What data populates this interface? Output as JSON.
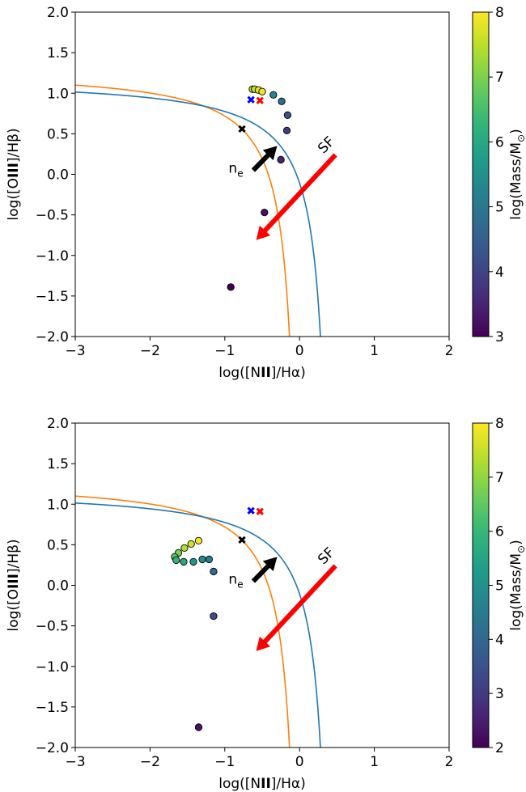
{
  "chart_data": [
    {
      "type": "scatter",
      "xlabel_parts": [
        "log([N",
        "II",
        "]/Hα)"
      ],
      "ylabel_parts": [
        "log([O",
        "III",
        "]/Hβ)"
      ],
      "xlim": [
        -3,
        2
      ],
      "ylim": [
        -2,
        2
      ],
      "x_ticks": [
        -3,
        -2,
        -1,
        0,
        1,
        2
      ],
      "x_tick_labels": [
        "−3",
        "−2",
        "−1",
        "0",
        "1",
        "2"
      ],
      "y_ticks": [
        2.0,
        1.5,
        1.0,
        0.5,
        0.0,
        -0.5,
        -1.0,
        -1.5,
        -2.0
      ],
      "y_tick_labels": [
        "2.0",
        "1.5",
        "1.0",
        "0.5",
        "0.0",
        "−0.5",
        "−1.0",
        "−1.5",
        "−2.0"
      ],
      "colorbar": {
        "label_parts": [
          "log(Mass/M",
          "⊙",
          ")"
        ],
        "colormap": "viridis_r",
        "range": [
          3,
          8
        ],
        "ticks": [
          3,
          4,
          5,
          6,
          7,
          8
        ],
        "tick_labels": [
          "3",
          "4",
          "5",
          "6",
          "7",
          "8"
        ]
      },
      "curves": [
        {
          "formula": "kauffmann",
          "color": "#ff7f0e"
        },
        {
          "formula": "kewley",
          "color": "#1f77b4"
        }
      ],
      "points": [
        {
          "x": -0.63,
          "y": 1.05,
          "mass": 7.5
        },
        {
          "x": -0.6,
          "y": 1.05,
          "mass": 7.6
        },
        {
          "x": -0.55,
          "y": 1.04,
          "mass": 7.8
        },
        {
          "x": -0.5,
          "y": 1.02,
          "mass": 7.9
        },
        {
          "x": -0.35,
          "y": 0.98,
          "mass": 5.3
        },
        {
          "x": -0.24,
          "y": 0.9,
          "mass": 4.8
        },
        {
          "x": -0.16,
          "y": 0.73,
          "mass": 4.3
        },
        {
          "x": -0.17,
          "y": 0.54,
          "mass": 3.9
        },
        {
          "x": -0.25,
          "y": 0.18,
          "mass": 3.5
        },
        {
          "x": -0.47,
          "y": -0.47,
          "mass": 3.2
        },
        {
          "x": -0.92,
          "y": -1.39,
          "mass": 3.0
        }
      ],
      "markers": [
        {
          "x": -0.65,
          "y": 0.92,
          "color": "#0000ff"
        },
        {
          "x": -0.53,
          "y": 0.91,
          "color": "#ff0000"
        },
        {
          "x": -0.77,
          "y": 0.56,
          "color": "#000000"
        }
      ],
      "arrows": [
        {
          "x1": -0.62,
          "y1": 0.05,
          "x2": -0.3,
          "y2": 0.35,
          "color": "#000000",
          "label": "n",
          "label_sub": "e",
          "label_x": -0.95,
          "label_y": 0.02,
          "label_rotation": 0
        },
        {
          "x1": 0.48,
          "y1": 0.24,
          "x2": -0.58,
          "y2": -0.81,
          "color": "#ff0000",
          "label": "SF",
          "label_x": 0.32,
          "label_y": 0.25,
          "label_rotation": -45
        }
      ]
    },
    {
      "type": "scatter",
      "xlabel_parts": [
        "log([N",
        "II",
        "]/Hα)"
      ],
      "ylabel_parts": [
        "log([O",
        "III",
        "]/Hβ)"
      ],
      "xlim": [
        -3,
        2
      ],
      "ylim": [
        -2,
        2
      ],
      "x_ticks": [
        -3,
        -2,
        -1,
        0,
        1,
        2
      ],
      "x_tick_labels": [
        "−3",
        "−2",
        "−1",
        "0",
        "1",
        "2"
      ],
      "y_ticks": [
        2.0,
        1.5,
        1.0,
        0.5,
        0.0,
        -0.5,
        -1.0,
        -1.5,
        -2.0
      ],
      "y_tick_labels": [
        "2.0",
        "1.5",
        "1.0",
        "0.5",
        "0.0",
        "−0.5",
        "−1.0",
        "−1.5",
        "−2.0"
      ],
      "colorbar": {
        "label_parts": [
          "log(Mass/M",
          "⊙",
          ")"
        ],
        "colormap": "viridis_r",
        "range": [
          2,
          8
        ],
        "ticks": [
          2,
          3,
          4,
          5,
          6,
          7,
          8
        ],
        "tick_labels": [
          "2",
          "3",
          "4",
          "5",
          "6",
          "7",
          "8"
        ]
      },
      "curves": [
        {
          "formula": "kauffmann",
          "color": "#ff7f0e"
        },
        {
          "formula": "kewley",
          "color": "#1f77b4"
        }
      ],
      "points": [
        {
          "x": -1.35,
          "y": 0.55,
          "mass": 7.9
        },
        {
          "x": -1.45,
          "y": 0.51,
          "mass": 7.6
        },
        {
          "x": -1.54,
          "y": 0.46,
          "mass": 7.3
        },
        {
          "x": -1.62,
          "y": 0.4,
          "mass": 6.8
        },
        {
          "x": -1.67,
          "y": 0.35,
          "mass": 6.4
        },
        {
          "x": -1.65,
          "y": 0.31,
          "mass": 6.0
        },
        {
          "x": -1.55,
          "y": 0.29,
          "mass": 5.6
        },
        {
          "x": -1.42,
          "y": 0.29,
          "mass": 5.2
        },
        {
          "x": -1.3,
          "y": 0.32,
          "mass": 4.9
        },
        {
          "x": -1.21,
          "y": 0.32,
          "mass": 4.5
        },
        {
          "x": -1.15,
          "y": 0.17,
          "mass": 4.1
        },
        {
          "x": -1.15,
          "y": -0.38,
          "mass": 3.4
        },
        {
          "x": -1.35,
          "y": -1.75,
          "mass": 2.3
        }
      ],
      "markers": [
        {
          "x": -0.65,
          "y": 0.92,
          "color": "#0000ff"
        },
        {
          "x": -0.53,
          "y": 0.91,
          "color": "#ff0000"
        },
        {
          "x": -0.77,
          "y": 0.56,
          "color": "#000000"
        }
      ],
      "arrows": [
        {
          "x1": -0.62,
          "y1": 0.05,
          "x2": -0.3,
          "y2": 0.35,
          "color": "#000000",
          "label": "n",
          "label_sub": "e",
          "label_x": -0.95,
          "label_y": 0.02,
          "label_rotation": 0
        },
        {
          "x1": 0.48,
          "y1": 0.24,
          "x2": -0.58,
          "y2": -0.81,
          "color": "#ff0000",
          "label": "SF",
          "label_x": 0.32,
          "label_y": 0.25,
          "label_rotation": -45
        }
      ]
    }
  ]
}
